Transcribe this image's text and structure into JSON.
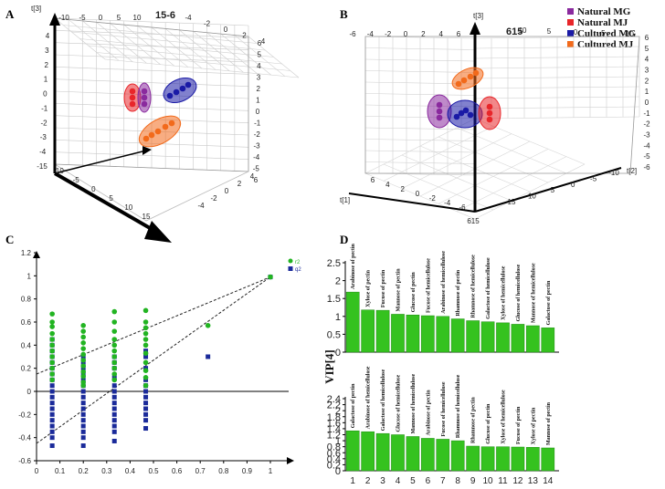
{
  "panels": {
    "A": "A",
    "B": "B",
    "C": "C",
    "D": "D"
  },
  "legend": [
    {
      "label": "Natural MG",
      "color": "#8a2a9e"
    },
    {
      "label": "Natural MJ",
      "color": "#e8262a"
    },
    {
      "label": "Cultured MG",
      "color": "#1a1aa6"
    },
    {
      "label": "Cultured MJ",
      "color": "#f26a1b"
    }
  ],
  "panelA": {
    "axis_labels": {
      "t3": "t[3]",
      "top": "15-6"
    },
    "top_ticks": [
      "-10",
      "-5",
      "0",
      "5",
      "10",
      "-4",
      "-2",
      "0",
      "2",
      "4"
    ],
    "right_ticks": [
      "6",
      "5",
      "4",
      "3",
      "2",
      "1",
      "0",
      "-1",
      "-2",
      "-3",
      "-4",
      "-5",
      "6"
    ],
    "left_ticks": [
      "4",
      "3",
      "2",
      "1",
      "0",
      "-1",
      "-2",
      "-3",
      "-4",
      "-15"
    ],
    "bottom_ticks": [
      "-10",
      "-5",
      "0",
      "5",
      "10",
      "15"
    ],
    "bottom_right_ticks": [
      "-4",
      "-2",
      "0",
      "2",
      "4"
    ],
    "clusters": [
      {
        "group": "Natural MJ",
        "points": 3
      },
      {
        "group": "Natural MG",
        "points": 3
      },
      {
        "group": "Cultured MG",
        "points": 4
      },
      {
        "group": "Cultured MJ",
        "points": 5
      }
    ]
  },
  "panelB": {
    "axis_labels": {
      "t1": "t[1]",
      "t2": "t[2]",
      "t3": "t[3]",
      "top": "615"
    },
    "top_ticks": [
      "-6",
      "-4",
      "-2",
      "0",
      "2",
      "4",
      "6",
      "10",
      "5",
      "0",
      "-5",
      "-10"
    ],
    "right_ticks": [
      "6",
      "5",
      "4",
      "3",
      "2",
      "1",
      "0",
      "-1",
      "-2",
      "-3",
      "-4",
      "-5",
      "-6"
    ],
    "bottom_left_ticks": [
      "6",
      "4",
      "2",
      "0",
      "-2",
      "-4",
      "-6"
    ],
    "bottom_right_ticks": [
      "-10",
      "-5",
      "0",
      "5",
      "10",
      "15"
    ],
    "corner": "615"
  },
  "chart_data": [
    {
      "id": "C",
      "type": "scatter",
      "legend": [
        "r2",
        "q2"
      ],
      "xlim": [
        0,
        1
      ],
      "ylim": [
        -0.6,
        1.2
      ],
      "xticks": [
        "0",
        "0.1",
        "0.2",
        "0.3",
        "0.4",
        "0.5",
        "0.6",
        "0.7",
        "0.8",
        "0.9",
        "1"
      ],
      "yticks": [
        "-0.6",
        "-0.4",
        "-0.2",
        "0",
        "0.2",
        "0.4",
        "0.6",
        "0.8",
        "1",
        "1.2"
      ],
      "series": [
        {
          "name": "r2",
          "color": "#22b422",
          "x": [
            0.067,
            0.067,
            0.067,
            0.067,
            0.067,
            0.067,
            0.067,
            0.067,
            0.067,
            0.067,
            0.067,
            0.067,
            0.2,
            0.2,
            0.2,
            0.2,
            0.2,
            0.2,
            0.2,
            0.2,
            0.2,
            0.2,
            0.2,
            0.2,
            0.333,
            0.333,
            0.333,
            0.333,
            0.333,
            0.333,
            0.333,
            0.333,
            0.333,
            0.333,
            0.333,
            0.467,
            0.467,
            0.467,
            0.467,
            0.467,
            0.467,
            0.467,
            0.467,
            0.467,
            0.467,
            0.467,
            0.733,
            1.0
          ],
          "y": [
            0.67,
            0.6,
            0.56,
            0.5,
            0.45,
            0.4,
            0.35,
            0.3,
            0.25,
            0.2,
            0.15,
            0.1,
            0.57,
            0.52,
            0.47,
            0.42,
            0.37,
            0.32,
            0.27,
            0.22,
            0.17,
            0.13,
            0.08,
            0.05,
            0.69,
            0.6,
            0.52,
            0.45,
            0.4,
            0.35,
            0.3,
            0.25,
            0.2,
            0.15,
            0.1,
            0.7,
            0.6,
            0.55,
            0.5,
            0.45,
            0.4,
            0.33,
            0.25,
            0.18,
            0.12,
            0.05,
            0.57,
            0.99
          ]
        },
        {
          "name": "q2",
          "color": "#1a2a9a",
          "x": [
            0.067,
            0.067,
            0.067,
            0.067,
            0.067,
            0.067,
            0.067,
            0.067,
            0.067,
            0.067,
            0.067,
            0.067,
            0.067,
            0.067,
            0.067,
            0.067,
            0.067,
            0.067,
            0.067,
            0.2,
            0.2,
            0.2,
            0.2,
            0.2,
            0.2,
            0.2,
            0.2,
            0.2,
            0.2,
            0.2,
            0.2,
            0.2,
            0.2,
            0.2,
            0.2,
            0.333,
            0.333,
            0.333,
            0.333,
            0.333,
            0.333,
            0.333,
            0.333,
            0.333,
            0.333,
            0.333,
            0.333,
            0.333,
            0.333,
            0.467,
            0.467,
            0.467,
            0.467,
            0.467,
            0.467,
            0.467,
            0.467,
            0.467,
            0.467,
            0.467,
            0.467,
            0.733,
            1.0
          ],
          "y": [
            0.45,
            0.4,
            0.35,
            0.3,
            0.25,
            0.2,
            0.15,
            0.1,
            0.05,
            0.0,
            -0.05,
            -0.1,
            -0.15,
            -0.2,
            -0.25,
            -0.3,
            -0.35,
            -0.4,
            -0.47,
            0.3,
            0.25,
            0.2,
            0.15,
            0.1,
            0.05,
            0.0,
            -0.05,
            -0.1,
            -0.15,
            -0.2,
            -0.25,
            -0.3,
            -0.35,
            -0.4,
            -0.47,
            0.3,
            0.25,
            0.2,
            0.12,
            0.05,
            0.0,
            -0.05,
            -0.1,
            -0.15,
            -0.2,
            -0.25,
            -0.3,
            -0.35,
            -0.43,
            0.35,
            0.3,
            0.2,
            0.1,
            0.05,
            0.0,
            -0.05,
            -0.1,
            -0.15,
            -0.2,
            -0.25,
            -0.32,
            0.3,
            0.99
          ]
        }
      ],
      "regression_lines": [
        {
          "name": "r2",
          "from": [
            0,
            0.15
          ],
          "to": [
            1,
            0.99
          ]
        },
        {
          "name": "q2",
          "from": [
            0,
            -0.45
          ],
          "to": [
            1,
            0.99
          ]
        }
      ]
    },
    {
      "id": "D-top",
      "type": "bar",
      "ylabel": "VIP[4]",
      "ylim": [
        0,
        2.5
      ],
      "yticks": [
        "0",
        "0.5",
        "1",
        "1.5",
        "2",
        "2.5"
      ],
      "color": "#35c21f",
      "categories": [
        "Arabinose of pectin",
        "Xylose of pectin",
        "Fucose of pectin",
        "Mannose of pectin",
        "Glucose of pectin",
        "Fucose of hemicellulose",
        "Arabinose of hemicellulose",
        "Rhamnose of pectin",
        "Rhamnose of hemicellulose",
        "Galactose of hemicellulose",
        "Xylose of hemicellulose",
        "Glucose of hemicellulose",
        "Mannose of hemicellulose",
        "Galactose of pectin"
      ],
      "values": [
        1.68,
        1.18,
        1.17,
        1.06,
        1.04,
        1.02,
        1.0,
        0.93,
        0.88,
        0.85,
        0.82,
        0.78,
        0.74,
        0.68
      ]
    },
    {
      "id": "D-bottom",
      "type": "bar",
      "ylim": [
        0,
        2.4
      ],
      "yticks": [
        "0",
        "0.2",
        "0.4",
        "0.6",
        "0.8",
        "1",
        "1.2",
        "1.4",
        "1.6",
        "1.8",
        "2",
        "2.2",
        "2.4"
      ],
      "xticks": [
        "1",
        "2",
        "3",
        "4",
        "5",
        "6",
        "7",
        "8",
        "9",
        "10",
        "11",
        "12",
        "13",
        "14"
      ],
      "color": "#35c21f",
      "categories": [
        "Galactose of pectin",
        "Arabinose of hemicellulose",
        "Galactose of hemicellulose",
        "Glucose of hemicellulose",
        "Mannose of hemicellulose",
        "Arabinose of pectin",
        "Fucose of hemicellulose",
        "Rhamnose of hemicellulose",
        "Rhamnose of pectin",
        "Glucose of pectin",
        "Xylose of hemicellulose",
        "Fucose of pectin",
        "Xylose of pectin",
        "Mannose of pectin"
      ],
      "values": [
        1.33,
        1.3,
        1.24,
        1.2,
        1.14,
        1.08,
        1.05,
        1.0,
        0.82,
        0.8,
        0.8,
        0.79,
        0.78,
        0.76
      ]
    }
  ]
}
